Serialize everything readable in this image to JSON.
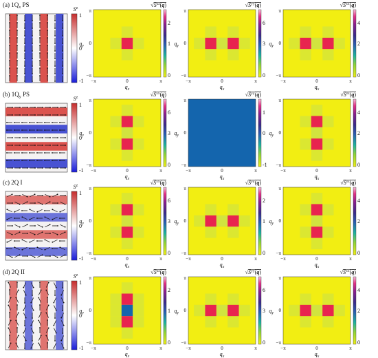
{
  "figure": {
    "panels": [
      {
        "label": "(a) 1Q",
        "label_sub": "x",
        "label_tail": " PS",
        "spin_colorbar": {
          "title": "S",
          "title_sup": "z",
          "max_label": "1",
          "mid_label": "0",
          "min_label": "-1"
        },
        "spin_pattern": "stripes-vertical",
        "sfs": [
          {
            "component": "zz",
            "colorbar_max_label": "2",
            "colorbar_mid_label": "1",
            "colorbar_min_label": "0"
          },
          {
            "component": "yy",
            "colorbar_max_label": "6",
            "colorbar_mid_label": "3",
            "colorbar_min_label": "0"
          },
          {
            "component": "xx",
            "colorbar_max_label": "4",
            "colorbar_mid_label": "2",
            "colorbar_min_label": "0"
          }
        ]
      },
      {
        "label": "(b) 1Q",
        "label_sub": "y",
        "label_tail": " PS",
        "spin_colorbar": {
          "title": "S",
          "title_sup": "z",
          "max_label": "1",
          "mid_label": "0",
          "min_label": "-1"
        },
        "spin_pattern": "stripes-horizontal",
        "sfs": [
          {
            "component": "xx",
            "colorbar_max_label": "6",
            "colorbar_mid_label": "3",
            "colorbar_min_label": "0"
          },
          {
            "component": "yy",
            "colorbar_max_label": "1",
            "colorbar_mid_label": "0",
            "colorbar_min_label": "-1"
          },
          {
            "component": "zz",
            "colorbar_max_label": "4",
            "colorbar_mid_label": "2",
            "colorbar_min_label": "0"
          }
        ]
      },
      {
        "label": "(c) 2Q I",
        "label_sub": "",
        "label_tail": "",
        "spin_colorbar": {
          "title": "S",
          "title_sup": "z",
          "max_label": "1",
          "mid_label": "0",
          "min_label": "-1"
        },
        "spin_pattern": "stripes-horizontal-soft",
        "sfs": [
          {
            "component": "xx",
            "colorbar_max_label": "6",
            "colorbar_mid_label": "3",
            "colorbar_min_label": "0"
          },
          {
            "component": "yy",
            "colorbar_max_label": "2",
            "colorbar_mid_label": "1",
            "colorbar_min_label": "0"
          },
          {
            "component": "zz",
            "colorbar_max_label": "4",
            "colorbar_mid_label": "2",
            "colorbar_min_label": "0"
          }
        ]
      },
      {
        "label": "(d) 2Q II",
        "label_sub": "",
        "label_tail": "",
        "spin_colorbar": {
          "title": "S",
          "title_sup": "z",
          "max_label": "1",
          "mid_label": "0",
          "min_label": "-1"
        },
        "spin_pattern": "stripes-vertical-soft",
        "sfs": [
          {
            "component": "zz",
            "colorbar_max_label": "2",
            "colorbar_mid_label": "1",
            "colorbar_min_label": "0"
          },
          {
            "component": "yy",
            "colorbar_max_label": "6",
            "colorbar_mid_label": "3",
            "colorbar_min_label": "0"
          },
          {
            "component": "xx",
            "colorbar_max_label": "4",
            "colorbar_mid_label": "2",
            "colorbar_min_label": "0"
          }
        ]
      }
    ],
    "axis": {
      "x_label": "q",
      "x_sub": "x",
      "y_label": "q",
      "y_sub": "y",
      "tick_pos": "π",
      "tick_zero": "0",
      "tick_neg": "−π"
    }
  },
  "chart_data": [
    {
      "type": "heatmap",
      "panel": "(a)",
      "component": "zz",
      "peaks": [
        [
          0,
          0
        ]
      ],
      "peak_value": 2.4,
      "colorbar_range": [
        0,
        2.5
      ]
    },
    {
      "type": "heatmap",
      "panel": "(a)",
      "component": "yy",
      "peaks": [
        [
          -1.05,
          0
        ],
        [
          1.05,
          0
        ]
      ],
      "peak_value": 6,
      "colorbar_range": [
        0,
        6
      ]
    },
    {
      "type": "heatmap",
      "panel": "(a)",
      "component": "xx",
      "peaks": [
        [
          -1.05,
          0
        ],
        [
          1.05,
          0
        ]
      ],
      "peak_value": 4.5,
      "colorbar_range": [
        0,
        4.5
      ]
    },
    {
      "type": "heatmap",
      "panel": "(b)",
      "component": "xx",
      "peaks": [
        [
          0,
          1.05
        ],
        [
          0,
          -1.05
        ]
      ],
      "peak_value": 6,
      "colorbar_range": [
        0,
        6
      ]
    },
    {
      "type": "heatmap",
      "panel": "(b)",
      "component": "yy",
      "peaks": [],
      "uniform_value": 0,
      "colorbar_range": [
        -1,
        1
      ]
    },
    {
      "type": "heatmap",
      "panel": "(b)",
      "component": "zz",
      "peaks": [
        [
          0,
          1.05
        ],
        [
          0,
          -1.05
        ]
      ],
      "peak_value": 4.5,
      "colorbar_range": [
        0,
        4.5
      ]
    },
    {
      "type": "heatmap",
      "panel": "(c)",
      "component": "xx",
      "peaks": [
        [
          0,
          1.05
        ],
        [
          0,
          -1.05
        ]
      ],
      "peak_value": 6,
      "colorbar_range": [
        0,
        6
      ]
    },
    {
      "type": "heatmap",
      "panel": "(c)",
      "component": "yy",
      "peaks": [
        [
          -1.05,
          0
        ],
        [
          1.05,
          0
        ]
      ],
      "peak_value": 2.5,
      "colorbar_range": [
        0,
        2.5
      ]
    },
    {
      "type": "heatmap",
      "panel": "(c)",
      "component": "zz",
      "peaks": [
        [
          0,
          1.05
        ],
        [
          0,
          -1.05
        ]
      ],
      "peak_value": 4.5,
      "colorbar_range": [
        0,
        4.5
      ]
    },
    {
      "type": "heatmap",
      "panel": "(d)",
      "component": "zz",
      "peaks": [
        [
          0,
          1.05
        ],
        [
          0,
          0
        ],
        [
          0,
          -1.05
        ]
      ],
      "peak_value": 2.2,
      "colorbar_range": [
        0,
        2.2
      ]
    },
    {
      "type": "heatmap",
      "panel": "(d)",
      "component": "yy",
      "peaks": [
        [
          -1.05,
          0
        ],
        [
          1.05,
          0
        ]
      ],
      "peak_value": 6,
      "colorbar_range": [
        0,
        6
      ]
    },
    {
      "type": "heatmap",
      "panel": "(d)",
      "component": "xx",
      "peaks": [
        [
          -1.05,
          0
        ],
        [
          1.05,
          0
        ]
      ],
      "peak_value": 4.5,
      "colorbar_range": [
        0,
        4.5
      ]
    }
  ],
  "colors": {
    "background_field": "#f2ee12",
    "peak": "#e8244f",
    "zero_plane": "#1465ad",
    "spin_red": "#d94a44",
    "spin_blue": "#3f4ad1",
    "spin_white": "#f4f2f2"
  }
}
